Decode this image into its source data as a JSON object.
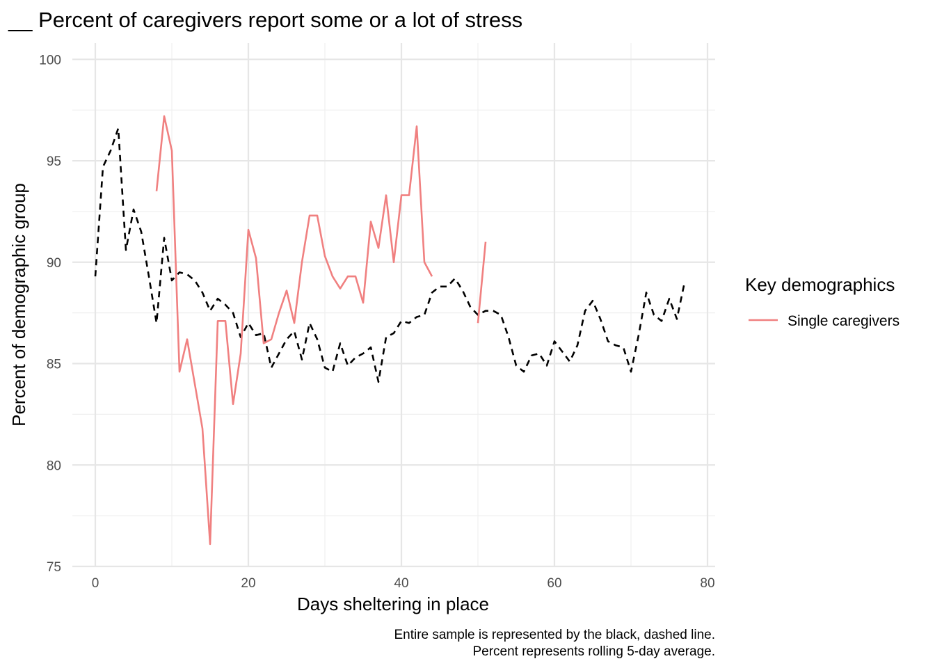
{
  "chart_data": {
    "type": "line",
    "title": "__ Percent of caregivers report some or a lot of stress",
    "xlabel": "Days sheltering in place",
    "ylabel": "Percent of demographic group",
    "xlim": [
      -3,
      81
    ],
    "ylim": [
      75,
      100.8
    ],
    "x_ticks": [
      0,
      20,
      40,
      60,
      80
    ],
    "y_ticks": [
      75,
      80,
      85,
      90,
      95,
      100
    ],
    "grid": true,
    "legend": {
      "title": "Key demographics",
      "position": "right",
      "entries": [
        "Single caregivers"
      ]
    },
    "caption": [
      "Entire sample is represented by the black, dashed line.",
      "Percent represents rolling 5-day average."
    ],
    "series": [
      {
        "name": "Single caregivers",
        "color": "#f08080",
        "style": "solid",
        "segments": [
          {
            "x": [
              8,
              9,
              10,
              11,
              12,
              13,
              14,
              15,
              16,
              17,
              18,
              19,
              20,
              21,
              22,
              23,
              24,
              25,
              26,
              27,
              28,
              29,
              30,
              31,
              32,
              33,
              34,
              35,
              36,
              37,
              38,
              39,
              40,
              41,
              42,
              43,
              44
            ],
            "y": [
              93.5,
              97.2,
              95.5,
              84.6,
              86.2,
              84.0,
              81.8,
              76.1,
              87.1,
              87.1,
              83.0,
              85.5,
              91.6,
              90.2,
              86.0,
              86.2,
              87.5,
              88.6,
              87.0,
              90.0,
              92.3,
              92.3,
              90.3,
              89.3,
              88.7,
              89.3,
              89.3,
              88.0,
              92.0,
              90.7,
              93.3,
              90.0,
              93.3,
              93.3,
              96.7,
              90.0,
              89.3
            ]
          },
          {
            "x": [
              50,
              51
            ],
            "y": [
              87.0,
              91.0
            ]
          }
        ]
      },
      {
        "color": "#000000",
        "style": "dashed",
        "segments": [
          {
            "x": [
              0,
              1,
              2,
              3,
              4,
              5,
              6,
              7,
              8,
              9,
              10,
              11,
              12,
              13,
              14,
              15,
              16,
              17,
              18,
              19,
              20,
              21,
              22,
              23,
              24,
              25,
              26,
              27,
              28,
              29,
              30,
              31,
              32,
              33,
              34,
              35,
              36,
              37,
              38,
              39,
              40,
              41,
              42,
              43,
              44,
              45,
              46,
              47,
              48,
              49,
              50,
              51,
              52,
              53,
              54,
              55,
              56,
              57,
              58,
              59,
              60,
              61,
              62,
              63,
              64,
              65,
              66,
              67,
              68,
              69,
              70,
              71,
              72,
              73,
              74,
              75,
              76,
              77
            ],
            "y": [
              89.3,
              94.7,
              95.5,
              96.6,
              90.6,
              92.6,
              91.5,
              89.3,
              87.0,
              91.2,
              89.1,
              89.5,
              89.4,
              89.1,
              88.5,
              87.6,
              88.2,
              87.9,
              87.5,
              86.3,
              87.0,
              86.4,
              86.5,
              84.8,
              85.5,
              86.2,
              86.6,
              85.2,
              87.0,
              86.2,
              84.8,
              84.6,
              86.0,
              84.9,
              85.3,
              85.5,
              85.8,
              84.1,
              86.3,
              86.5,
              87.1,
              87.0,
              87.3,
              87.4,
              88.5,
              88.8,
              88.8,
              89.2,
              88.6,
              87.8,
              87.4,
              87.6,
              87.6,
              87.4,
              86.3,
              84.9,
              84.6,
              85.4,
              85.5,
              84.9,
              86.1,
              85.6,
              85.1,
              85.9,
              87.6,
              88.1,
              87.2,
              86.1,
              85.9,
              85.8,
              84.6,
              86.4,
              88.5,
              87.4,
              87.1,
              88.2,
              87.2,
              89.0
            ]
          }
        ]
      }
    ]
  }
}
